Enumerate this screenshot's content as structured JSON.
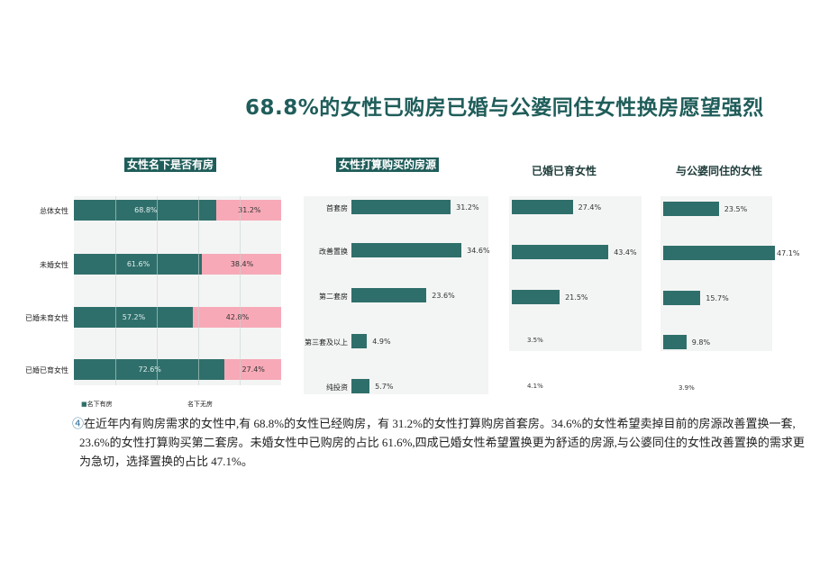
{
  "title": "68.8%的女性已购房已婚与公婆同住女性换房愿望强烈",
  "colors": {
    "teal": "#2f6f6b",
    "pink": "#f7a9b7",
    "title": "#1f5d5a"
  },
  "chart_data": [
    {
      "type": "bar",
      "orientation": "horizontal-stacked-100",
      "title": "女性名下是否有房",
      "categories": [
        "总体女性",
        "未婚女性",
        "已婚未育女性",
        "已婚已育女性"
      ],
      "series": [
        {
          "name": "名下有房",
          "values": [
            68.8,
            61.6,
            57.2,
            72.6
          ],
          "labels": [
            "68.8%",
            "61.6%",
            "57.2%",
            "72.6%"
          ]
        },
        {
          "name": "名下无房",
          "values": [
            31.2,
            38.4,
            42.8,
            27.4
          ],
          "labels": [
            "31.2%",
            "38.4%",
            "42.8%",
            "27.4%"
          ]
        }
      ],
      "xlim": [
        0,
        100
      ],
      "legend": "bottom",
      "grid": true
    },
    {
      "type": "bar",
      "orientation": "horizontal",
      "title": "女性打算购买的房源",
      "categories": [
        "首套房",
        "改善置换",
        "第二套房",
        "第三套及以上",
        "纯投资"
      ],
      "values": [
        31.2,
        34.6,
        23.6,
        4.9,
        5.7
      ],
      "labels": [
        "31.2%",
        "34.6%",
        "23.6%",
        "4.9%",
        "5.7%"
      ]
    },
    {
      "type": "bar",
      "orientation": "horizontal",
      "title": "已婚已育女性",
      "values": [
        27.4,
        43.4,
        21.5,
        3.5,
        4.1
      ],
      "labels": [
        "27.4%",
        "43.4%",
        "21.5%",
        "3.5%",
        "4.1%"
      ],
      "bars_shown": [
        true,
        true,
        true,
        false,
        false
      ]
    },
    {
      "type": "bar",
      "orientation": "horizontal",
      "title": "与公婆同住的女性",
      "values": [
        23.5,
        47.1,
        15.7,
        9.8,
        3.9
      ],
      "labels": [
        "23.5%",
        "47.1%",
        "15.7%",
        "9.8%",
        "3.9%"
      ],
      "bars_shown": [
        true,
        true,
        true,
        true,
        false
      ]
    }
  ],
  "paragraph": {
    "marker": "④",
    "lines": [
      "在近年内有购房需求的女性中,有 68.8%的女性已经购房，有 31.2%的女性打算购房首套房。34.6%的女性希望卖掉目前的房源改善置换一套,",
      "23.6%的女性打算购买第二套房。未婚女性中已购房的占比 61.6%,四成已婚女性希望置换更为舒适的房源,与公婆同住的女性改善置换的需求更",
      "为急切，选择置换的占比 47.1%。"
    ]
  }
}
